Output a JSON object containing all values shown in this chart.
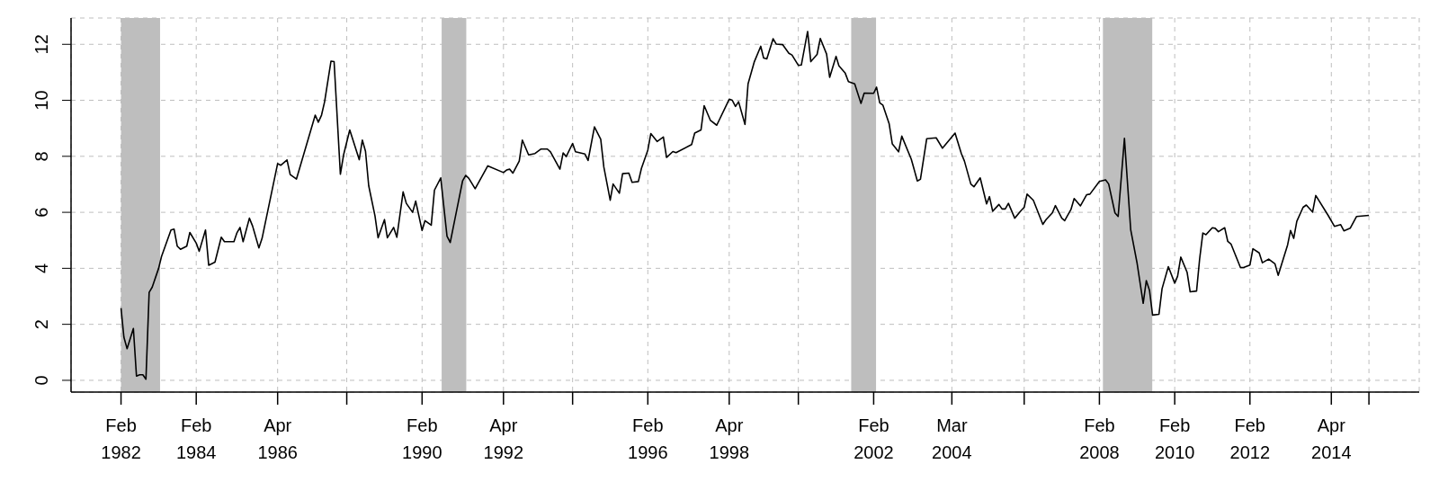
{
  "chart_data": {
    "type": "line",
    "x": [
      "1982-02",
      "1982-03",
      "1982-04",
      "1982-06",
      "1982-07",
      "1982-08",
      "1982-09",
      "1982-10",
      "1982-11",
      "1982-12",
      "1983-02",
      "1983-03",
      "1983-06",
      "1983-07",
      "1983-08",
      "1983-09",
      "1983-11",
      "1983-12",
      "1984-02",
      "1984-03",
      "1984-05",
      "1984-06",
      "1984-08",
      "1984-10",
      "1984-11",
      "1985-02",
      "1985-03",
      "1985-04",
      "1985-05",
      "1985-07",
      "1985-08",
      "1985-10",
      "1985-11",
      "1986-04",
      "1986-05",
      "1986-07",
      "1986-08",
      "1986-10",
      "1987-04",
      "1987-05",
      "1987-06",
      "1987-07",
      "1987-09",
      "1987-10",
      "1987-12",
      "1988-01",
      "1988-03",
      "1988-06",
      "1988-07",
      "1988-08",
      "1988-09",
      "1988-11",
      "1988-12",
      "1989-02",
      "1989-03",
      "1989-05",
      "1989-06",
      "1989-08",
      "1989-09",
      "1989-11",
      "1989-12",
      "1990-02",
      "1990-03",
      "1990-05",
      "1990-06",
      "1990-08",
      "1990-10",
      "1990-11",
      "1991-03",
      "1991-04",
      "1991-05",
      "1991-07",
      "1991-11",
      "1992-04",
      "1992-05",
      "1992-06",
      "1992-07",
      "1992-09",
      "1992-10",
      "1992-12",
      "1993-02",
      "1993-04",
      "1993-06",
      "1993-07",
      "1993-10",
      "1993-11",
      "1993-12",
      "1994-02",
      "1994-03",
      "1994-06",
      "1994-07",
      "1994-09",
      "1994-11",
      "1994-12",
      "1995-02",
      "1995-03",
      "1995-05",
      "1995-06",
      "1995-08",
      "1995-09",
      "1995-11",
      "1995-12",
      "1996-02",
      "1996-03",
      "1996-05",
      "1996-07",
      "1996-08",
      "1996-10",
      "1996-11",
      "1997-04",
      "1997-05",
      "1997-07",
      "1997-08",
      "1997-10",
      "1997-12",
      "1998-04",
      "1998-05",
      "1998-06",
      "1998-07",
      "1998-09",
      "1998-10",
      "1998-12",
      "1999-02",
      "1999-03",
      "1999-04",
      "1999-06",
      "1999-07",
      "1999-09",
      "1999-11",
      "1999-12",
      "2000-02",
      "2000-03",
      "2000-05",
      "2000-06",
      "2000-08",
      "2000-09",
      "2000-11",
      "2000-12",
      "2001-02",
      "2001-03",
      "2001-05",
      "2001-06",
      "2001-08",
      "2001-10",
      "2001-11",
      "2002-02",
      "2002-03",
      "2002-04",
      "2002-05",
      "2002-07",
      "2002-08",
      "2002-10",
      "2002-11",
      "2003-02",
      "2003-04",
      "2003-05",
      "2003-07",
      "2003-10",
      "2003-12",
      "2004-04",
      "2004-06",
      "2004-07",
      "2004-09",
      "2004-10",
      "2004-12",
      "2005-02",
      "2005-03",
      "2005-04",
      "2005-06",
      "2005-07",
      "2005-08",
      "2005-09",
      "2005-11",
      "2006-01",
      "2006-02",
      "2006-03",
      "2006-05",
      "2006-08",
      "2006-09",
      "2006-11",
      "2006-12",
      "2007-02",
      "2007-03",
      "2007-05",
      "2007-06",
      "2007-08",
      "2007-10",
      "2007-11",
      "2008-02",
      "2008-04",
      "2008-05",
      "2008-07",
      "2008-08",
      "2008-10",
      "2008-12",
      "2009-02",
      "2009-04",
      "2009-05",
      "2009-06",
      "2009-07",
      "2009-09",
      "2009-10",
      "2009-12",
      "2010-02",
      "2010-03",
      "2010-04",
      "2010-06",
      "2010-07",
      "2010-09",
      "2010-10",
      "2010-11",
      "2010-12",
      "2011-02",
      "2011-03",
      "2011-04",
      "2011-06",
      "2011-07",
      "2011-08",
      "2011-11",
      "2011-12",
      "2012-02",
      "2012-03",
      "2012-05",
      "2012-06",
      "2012-08",
      "2012-10",
      "2012-11",
      "2013-02",
      "2013-03",
      "2013-04",
      "2013-05",
      "2013-07",
      "2013-08",
      "2013-10",
      "2013-11",
      "2014-03",
      "2014-05",
      "2014-07",
      "2014-08",
      "2014-10",
      "2014-12",
      "2015-04"
    ],
    "series": [
      {
        "color": "#000000",
        "values": [
          2.58,
          1.54,
          1.13,
          1.85,
          0.15,
          0.2,
          0.2,
          0.04,
          3.14,
          3.33,
          4.0,
          4.42,
          5.37,
          5.4,
          4.79,
          4.68,
          4.79,
          5.28,
          4.9,
          4.61,
          5.37,
          4.11,
          4.22,
          5.11,
          4.95,
          4.95,
          5.26,
          5.46,
          4.95,
          5.79,
          5.51,
          4.73,
          5.07,
          7.74,
          7.68,
          7.87,
          7.35,
          7.19,
          9.47,
          9.22,
          9.47,
          9.95,
          11.4,
          11.38,
          7.36,
          8.05,
          8.94,
          7.88,
          8.58,
          8.18,
          6.95,
          5.87,
          5.09,
          5.74,
          5.09,
          5.46,
          5.11,
          6.73,
          6.32,
          6.0,
          6.4,
          5.35,
          5.7,
          5.54,
          6.79,
          7.23,
          5.15,
          4.92,
          7.12,
          7.32,
          7.21,
          6.84,
          7.66,
          7.42,
          7.51,
          7.54,
          7.4,
          7.83,
          8.58,
          8.05,
          8.1,
          8.26,
          8.26,
          8.16,
          7.54,
          8.12,
          7.99,
          8.46,
          8.16,
          8.08,
          7.85,
          9.05,
          8.61,
          7.62,
          6.43,
          7.01,
          6.68,
          7.38,
          7.4,
          7.07,
          7.1,
          7.57,
          8.22,
          8.81,
          8.53,
          8.69,
          7.96,
          8.17,
          8.13,
          8.42,
          8.83,
          8.94,
          9.81,
          9.28,
          9.11,
          10.04,
          10.0,
          9.78,
          9.95,
          9.14,
          10.59,
          11.38,
          11.93,
          11.51,
          11.48,
          12.2,
          12.01,
          11.99,
          11.68,
          11.62,
          11.25,
          11.26,
          12.46,
          11.38,
          11.64,
          12.21,
          11.65,
          10.82,
          11.57,
          11.23,
          10.97,
          10.67,
          10.59,
          9.89,
          10.26,
          10.25,
          10.47,
          9.91,
          9.83,
          9.17,
          8.44,
          8.16,
          8.72,
          7.9,
          7.12,
          7.18,
          8.63,
          8.66,
          8.29,
          8.83,
          8.1,
          7.83,
          7.01,
          6.91,
          7.23,
          6.3,
          6.56,
          6.04,
          6.28,
          6.12,
          6.12,
          6.32,
          5.79,
          6.06,
          6.18,
          6.65,
          6.43,
          5.57,
          5.74,
          5.98,
          6.24,
          5.79,
          5.7,
          6.1,
          6.49,
          6.23,
          6.63,
          6.65,
          7.1,
          7.16,
          7.01,
          5.98,
          5.85,
          8.64,
          5.37,
          4.18,
          2.75,
          3.56,
          3.22,
          2.33,
          2.36,
          3.27,
          4.06,
          3.47,
          3.72,
          4.4,
          3.86,
          3.16,
          3.19,
          4.34,
          5.26,
          5.2,
          5.45,
          5.43,
          5.31,
          5.45,
          4.96,
          4.87,
          4.03,
          4.03,
          4.12,
          4.7,
          4.55,
          4.2,
          4.33,
          4.16,
          3.75,
          4.84,
          5.35,
          5.07,
          5.68,
          6.18,
          6.26,
          6.01,
          6.6,
          5.89,
          5.5,
          5.56,
          5.34,
          5.43,
          5.85,
          5.89
        ]
      }
    ],
    "xlim": [
      "1980-10-04",
      "2016-08-01"
    ],
    "xticks": [
      {
        "value": "1982-02",
        "label": "Feb 1982"
      },
      {
        "value": "1984-02",
        "label": "Feb 1984"
      },
      {
        "value": "1986-04",
        "label": "Apr 1986"
      },
      {
        "value": "1988-02",
        "label": null
      },
      {
        "value": "1990-02",
        "label": "Feb 1990"
      },
      {
        "value": "1992-04",
        "label": "Apr 1992"
      },
      {
        "value": "1994-02",
        "label": null
      },
      {
        "value": "1996-02",
        "label": "Feb 1996"
      },
      {
        "value": "1998-04",
        "label": "Apr 1998"
      },
      {
        "value": "2000-02",
        "label": null
      },
      {
        "value": "2002-02",
        "label": "Feb 2002"
      },
      {
        "value": "2004-03",
        "label": "Mar 2004"
      },
      {
        "value": "2006-02",
        "label": null
      },
      {
        "value": "2008-02",
        "label": "Feb 2008"
      },
      {
        "value": "2010-02",
        "label": "Feb 2010"
      },
      {
        "value": "2012-02",
        "label": "Feb 2012"
      },
      {
        "value": "2014-04",
        "label": "Apr 2014"
      },
      {
        "value": "2015-04",
        "label": null
      }
    ],
    "ylim": [
      -0.42,
      12.94
    ],
    "yticks": [
      0,
      2,
      4,
      6,
      8,
      10,
      12
    ],
    "grid": true,
    "bands": [
      {
        "axis": "x",
        "from": "1982-02",
        "to": "1983-02-15",
        "color": "#bebebe"
      },
      {
        "axis": "x",
        "from": "1990-08-10",
        "to": "1991-04-06",
        "color": "#bebebe"
      },
      {
        "axis": "x",
        "from": "2001-06-28",
        "to": "2002-02-24",
        "color": "#bebebe"
      },
      {
        "axis": "x",
        "from": "2008-03-06",
        "to": "2009-06-28",
        "color": "#bebebe"
      }
    ]
  }
}
